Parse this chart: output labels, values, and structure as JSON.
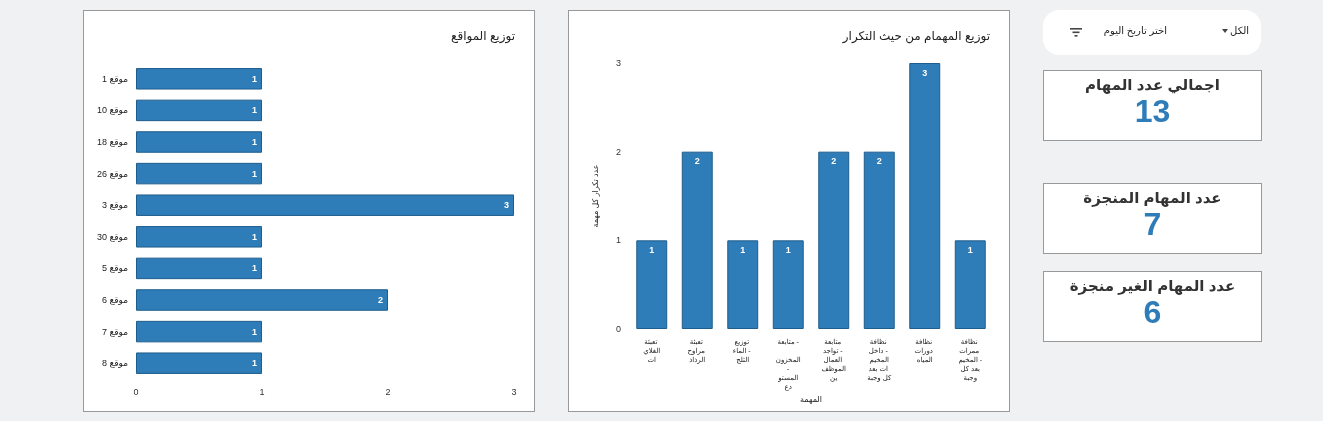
{
  "chart_data": [
    {
      "type": "bar",
      "title": "توزيع المواقع",
      "orientation": "horizontal",
      "categories": [
        "موقع 1",
        "موقع 10",
        "موقع 18",
        "موقع 26",
        "موقع 3",
        "موقع 30",
        "موقع 5",
        "موقع 6",
        "موقع 7",
        "موقع 8"
      ],
      "values": [
        1,
        1,
        1,
        1,
        3,
        1,
        1,
        2,
        1,
        1
      ],
      "color": "#2e7db8",
      "xlim": [
        0,
        3
      ],
      "xticks": [
        0,
        1,
        2,
        3
      ],
      "data_labels": true,
      "grid": false
    },
    {
      "type": "bar",
      "title": "توزيع المهمام من حيث التكرار",
      "xlabel": "المهمة",
      "ylabel": "عدد تكرار كل مهمة",
      "categories": [
        "تعبئة الغلايات",
        "تعبئة مراوح الرذاذ",
        "توزيع الماء - الثلج",
        "متابعة - المخزون - المستودع",
        "متابعة تواجد - العمال الموظفين",
        "نظافة داخل - المخيمات بعد كل وجبة",
        "نظافة دورات المياه",
        "نظافة ممرات المخيم - بعد كل وجبة"
      ],
      "values": [
        1,
        2,
        1,
        1,
        2,
        2,
        3,
        1
      ],
      "color": "#2e7db8",
      "ylim": [
        0,
        3
      ],
      "yticks": [
        0,
        1,
        2,
        3
      ],
      "data_labels": true,
      "grid": false
    },
    {
      "type": "other",
      "categories": [
        "اجمالي عدد المهام",
        "عدد المهام المنجزة",
        "عدد المهام الغير منجزة"
      ],
      "values": [
        13,
        7,
        6
      ],
      "data_labels": true,
      "annotations": [
        "الكل",
        "اختر تاريخ اليوم"
      ]
    }
  ]
}
